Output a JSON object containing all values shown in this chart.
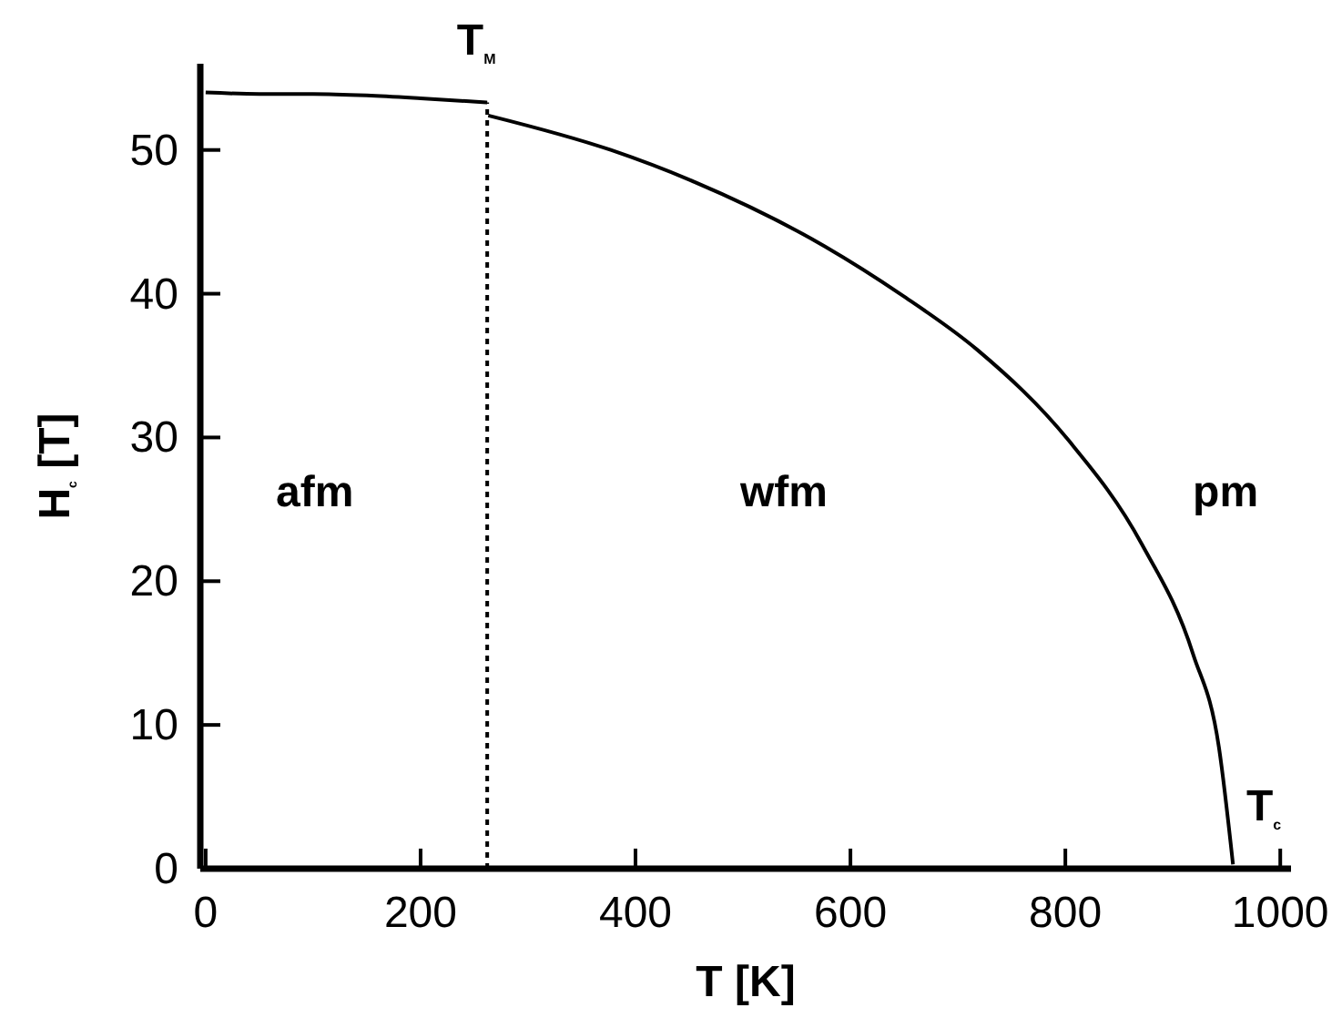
{
  "chart_data": {
    "type": "line",
    "xlabel": "T [K]",
    "ylabel": "H$_{c}$ [T]",
    "xlim": [
      -5,
      1010
    ],
    "xticks": [
      0,
      200,
      400,
      600,
      800,
      1000
    ],
    "ylim": [
      0,
      56
    ],
    "yticks": [
      0,
      10,
      20,
      30,
      40,
      50
    ],
    "grid": false,
    "marker": "none",
    "line_style": "solid",
    "series": [
      {
        "color": "#000000",
        "x": [
          0,
          50,
          100,
          150,
          200,
          262
        ],
        "values": [
          54.0,
          53.9,
          53.9,
          53.8,
          53.6,
          53.3
        ]
      },
      {
        "color": "#000000",
        "x": [
          263,
          377,
          451,
          576,
          648,
          718,
          803,
          871,
          919,
          943,
          956
        ],
        "values": [
          52.4,
          50.0,
          47.9,
          43.3,
          39.9,
          36.1,
          29.8,
          22.6,
          14.9,
          8.4,
          0.3
        ]
      }
    ],
    "ref_lines": [
      {
        "axis": "x",
        "value": 262,
        "line_style": "dotted",
        "color": "#000000",
        "label": "T$_{M}$"
      }
    ],
    "annotations": [
      "T$_{c}$",
      "afm",
      "wfm",
      "pm"
    ]
  }
}
